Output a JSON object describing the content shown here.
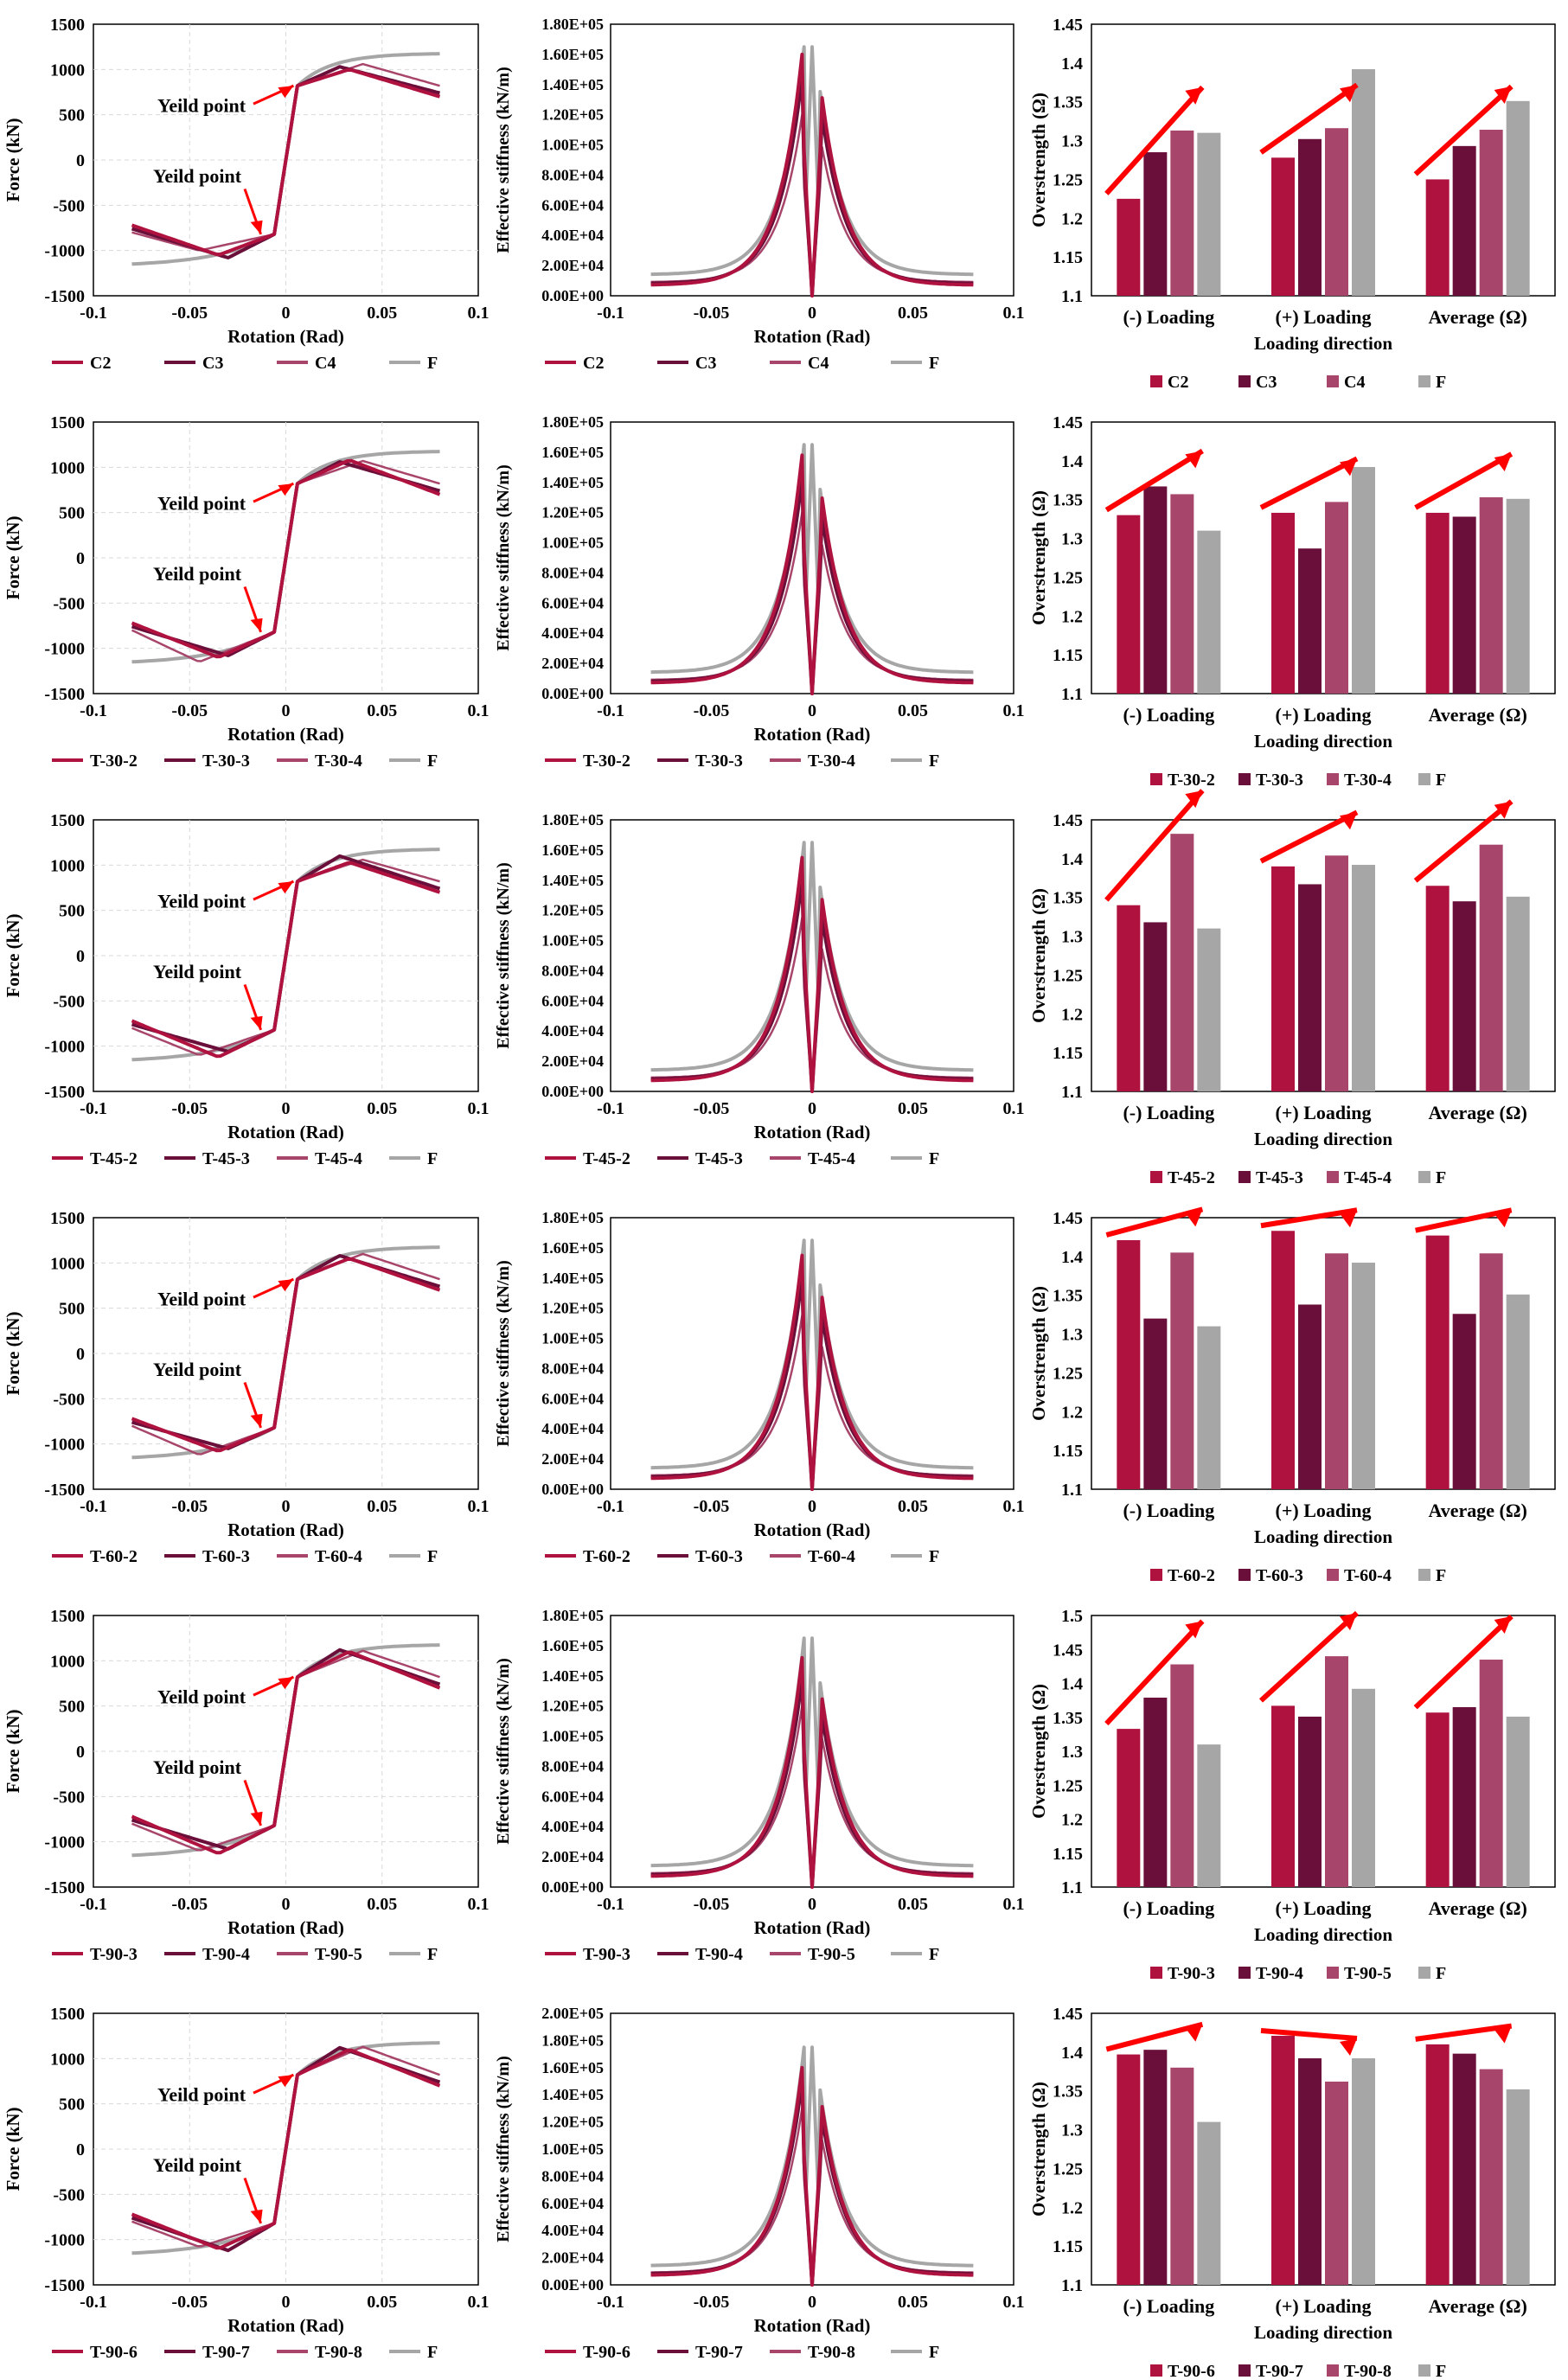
{
  "colors": {
    "s1": "#B0123F",
    "s2": "#6A0F3A",
    "s3": "#A8456B",
    "F": "#A6A6A6",
    "arrow": "#FF0000",
    "grid": "#D9D9D9"
  },
  "common": {
    "x_label": "Rotation (Rad)",
    "force_label": "Force (kN)",
    "stiff_label": "Effective stiffness (kN/m)",
    "over_label": "Overstrength (Ω)",
    "dir_label": "Loading direction",
    "yield_text": "Yeild point",
    "categories": [
      "(-) Loading",
      "(+) Loading",
      "Average (Ω)"
    ],
    "x_ticks": [
      "-0.1",
      "-0.05",
      "0",
      "0.05",
      "0.1"
    ],
    "force_ticks": [
      "1500",
      "1000",
      "500",
      "0",
      "-500",
      "-1000",
      "-1500"
    ]
  },
  "chart_data": [
    {
      "group": 0,
      "series_names": [
        "C2",
        "C3",
        "C4",
        "F"
      ],
      "force": {
        "type": "line",
        "xlim": [
          -0.1,
          0.1
        ],
        "ylim": [
          -1500,
          1500
        ],
        "peaks_pos": [
          1000,
          1030,
          1060,
          1180
        ],
        "peaks_neg": [
          -1050,
          -1080,
          -1000,
          -1180
        ]
      },
      "stiffness": {
        "type": "line",
        "xlim": [
          -0.1,
          0.1
        ],
        "ylim": [
          0,
          180000
        ],
        "y_ticks": [
          "1.80E+05",
          "1.60E+05",
          "1.40E+05",
          "1.20E+05",
          "1.00E+05",
          "8.00E+04",
          "6.00E+04",
          "4.00E+04",
          "2.00E+04",
          "0.00E+00"
        ],
        "peaks": [
          160000,
          145000,
          120000,
          165000
        ]
      },
      "overstrength": {
        "type": "bar",
        "ylim": [
          1.1,
          1.45
        ],
        "y_ticks": [
          "1.45",
          "1.4",
          "1.35",
          "1.3",
          "1.25",
          "1.2",
          "1.15",
          "1.1"
        ],
        "series": [
          {
            "name": "C2",
            "values": [
              1.225,
              1.278,
              1.25
            ]
          },
          {
            "name": "C3",
            "values": [
              1.285,
              1.302,
              1.293
            ]
          },
          {
            "name": "C4",
            "values": [
              1.313,
              1.316,
              1.314
            ]
          },
          {
            "name": "F",
            "values": [
              1.31,
              1.392,
              1.351
            ]
          }
        ]
      }
    },
    {
      "group": 1,
      "series_names": [
        "T-30-2",
        "T-30-3",
        "T-30-4",
        "F"
      ],
      "force": {
        "type": "line",
        "xlim": [
          -0.1,
          0.1
        ],
        "ylim": [
          -1500,
          1500
        ],
        "peaks_pos": [
          1080,
          1060,
          1070,
          1180
        ],
        "peaks_neg": [
          -1100,
          -1080,
          -1150,
          -1180
        ]
      },
      "stiffness": {
        "type": "line",
        "xlim": [
          -0.1,
          0.1
        ],
        "ylim": [
          0,
          180000
        ],
        "y_ticks": [
          "1.80E+05",
          "1.60E+05",
          "1.40E+05",
          "1.20E+05",
          "1.00E+05",
          "8.00E+04",
          "6.00E+04",
          "4.00E+04",
          "2.00E+04",
          "0.00E+00"
        ],
        "peaks": [
          158000,
          142000,
          120000,
          165000
        ]
      },
      "overstrength": {
        "type": "bar",
        "ylim": [
          1.1,
          1.45
        ],
        "y_ticks": [
          "1.45",
          "1.4",
          "1.35",
          "1.3",
          "1.25",
          "1.2",
          "1.15",
          "1.1"
        ],
        "series": [
          {
            "name": "T-30-2",
            "values": [
              1.33,
              1.333,
              1.333
            ]
          },
          {
            "name": "T-30-3",
            "values": [
              1.367,
              1.287,
              1.328
            ]
          },
          {
            "name": "T-30-4",
            "values": [
              1.357,
              1.347,
              1.353
            ]
          },
          {
            "name": "F",
            "values": [
              1.31,
              1.392,
              1.351
            ]
          }
        ]
      }
    },
    {
      "group": 2,
      "series_names": [
        "T-45-2",
        "T-45-3",
        "T-45-4",
        "F"
      ],
      "force": {
        "type": "line",
        "xlim": [
          -0.1,
          0.1
        ],
        "ylim": [
          -1500,
          1500
        ],
        "peaks_pos": [
          1030,
          1100,
          1060,
          1180
        ],
        "peaks_neg": [
          -1120,
          -1060,
          -1100,
          -1180
        ]
      },
      "stiffness": {
        "type": "line",
        "xlim": [
          -0.1,
          0.1
        ],
        "ylim": [
          0,
          180000
        ],
        "y_ticks": [
          "1.80E+05",
          "1.60E+05",
          "1.40E+05",
          "1.20E+05",
          "1.00E+05",
          "8.00E+04",
          "6.00E+04",
          "4.00E+04",
          "2.00E+04",
          "0.00E+00"
        ],
        "peaks": [
          155000,
          140000,
          115000,
          165000
        ]
      },
      "overstrength": {
        "type": "bar",
        "ylim": [
          1.1,
          1.45
        ],
        "y_ticks": [
          "1.45",
          "1.4",
          "1.35",
          "1.3",
          "1.25",
          "1.2",
          "1.15",
          "1.1"
        ],
        "series": [
          {
            "name": "T-45-2",
            "values": [
              1.34,
              1.39,
              1.365
            ]
          },
          {
            "name": "T-45-3",
            "values": [
              1.318,
              1.367,
              1.345
            ]
          },
          {
            "name": "T-45-4",
            "values": [
              1.432,
              1.404,
              1.418
            ]
          },
          {
            "name": "F",
            "values": [
              1.31,
              1.392,
              1.351
            ]
          }
        ]
      }
    },
    {
      "group": 3,
      "series_names": [
        "T-60-2",
        "T-60-3",
        "T-60-4",
        "F"
      ],
      "force": {
        "type": "line",
        "xlim": [
          -0.1,
          0.1
        ],
        "ylim": [
          -1500,
          1500
        ],
        "peaks_pos": [
          1050,
          1080,
          1100,
          1180
        ],
        "peaks_neg": [
          -1080,
          -1050,
          -1120,
          -1180
        ]
      },
      "stiffness": {
        "type": "line",
        "xlim": [
          -0.1,
          0.1
        ],
        "ylim": [
          0,
          180000
        ],
        "y_ticks": [
          "1.80E+05",
          "1.60E+05",
          "1.40E+05",
          "1.20E+05",
          "1.00E+05",
          "8.00E+04",
          "6.00E+04",
          "4.00E+04",
          "2.00E+04",
          "0.00E+00"
        ],
        "peaks": [
          155000,
          140000,
          115000,
          165000
        ]
      },
      "overstrength": {
        "type": "bar",
        "ylim": [
          1.1,
          1.45
        ],
        "y_ticks": [
          "1.45",
          "1.4",
          "1.35",
          "1.3",
          "1.25",
          "1.2",
          "1.15",
          "1.1"
        ],
        "series": [
          {
            "name": "T-60-2",
            "values": [
              1.421,
              1.433,
              1.427
            ]
          },
          {
            "name": "T-60-3",
            "values": [
              1.32,
              1.338,
              1.326
            ]
          },
          {
            "name": "T-60-4",
            "values": [
              1.405,
              1.404,
              1.404
            ]
          },
          {
            "name": "F",
            "values": [
              1.31,
              1.392,
              1.351
            ]
          }
        ]
      }
    },
    {
      "group": 4,
      "series_names": [
        "T-90-3",
        "T-90-4",
        "T-90-5",
        "F"
      ],
      "force": {
        "type": "line",
        "xlim": [
          -0.1,
          0.1
        ],
        "ylim": [
          -1500,
          1500
        ],
        "peaks_pos": [
          1100,
          1120,
          1110,
          1180
        ],
        "peaks_neg": [
          -1130,
          -1080,
          -1100,
          -1180
        ]
      },
      "stiffness": {
        "type": "line",
        "xlim": [
          -0.1,
          0.1
        ],
        "ylim": [
          0,
          180000
        ],
        "y_ticks": [
          "1.80E+05",
          "1.60E+05",
          "1.40E+05",
          "1.20E+05",
          "1.00E+05",
          "8.00E+04",
          "6.00E+04",
          "4.00E+04",
          "2.00E+04",
          "0.00E+00"
        ],
        "peaks": [
          152000,
          138000,
          120000,
          165000
        ]
      },
      "overstrength": {
        "type": "bar",
        "ylim": [
          1.1,
          1.5
        ],
        "y_ticks": [
          "1.5",
          "1.45",
          "1.4",
          "1.35",
          "1.3",
          "1.25",
          "1.2",
          "1.15",
          "1.1"
        ],
        "series": [
          {
            "name": "T-90-3",
            "values": [
              1.333,
              1.367,
              1.357
            ]
          },
          {
            "name": "T-90-4",
            "values": [
              1.379,
              1.351,
              1.365
            ]
          },
          {
            "name": "T-90-5",
            "values": [
              1.428,
              1.44,
              1.435
            ]
          },
          {
            "name": "F",
            "values": [
              1.31,
              1.392,
              1.351
            ]
          }
        ]
      }
    },
    {
      "group": 5,
      "series_names": [
        "T-90-6",
        "T-90-7",
        "T-90-8",
        "F"
      ],
      "force": {
        "type": "line",
        "xlim": [
          -0.1,
          0.1
        ],
        "ylim": [
          -1500,
          1500
        ],
        "peaks_pos": [
          1100,
          1120,
          1130,
          1180
        ],
        "peaks_neg": [
          -1100,
          -1120,
          -1080,
          -1180
        ]
      },
      "stiffness": {
        "type": "line",
        "xlim": [
          -0.1,
          0.1
        ],
        "ylim": [
          0,
          200000
        ],
        "y_ticks": [
          "2.00E+05",
          "1.80E+05",
          "1.60E+05",
          "1.40E+05",
          "1.20E+05",
          "1.00E+05",
          "8.00E+04",
          "6.00E+04",
          "4.00E+04",
          "2.00E+04",
          "0.00E+00"
        ],
        "peaks": [
          160000,
          150000,
          130000,
          175000
        ]
      },
      "overstrength": {
        "type": "bar",
        "ylim": [
          1.1,
          1.45
        ],
        "y_ticks": [
          "1.45",
          "1.4",
          "1.35",
          "1.3",
          "1.25",
          "1.2",
          "1.15",
          "1.1"
        ],
        "series": [
          {
            "name": "T-90-6",
            "values": [
              1.397,
              1.421,
              1.41
            ]
          },
          {
            "name": "T-90-7",
            "values": [
              1.403,
              1.392,
              1.398
            ]
          },
          {
            "name": "T-90-8",
            "values": [
              1.38,
              1.362,
              1.378
            ]
          },
          {
            "name": "F",
            "values": [
              1.31,
              1.392,
              1.352
            ]
          }
        ]
      }
    }
  ]
}
